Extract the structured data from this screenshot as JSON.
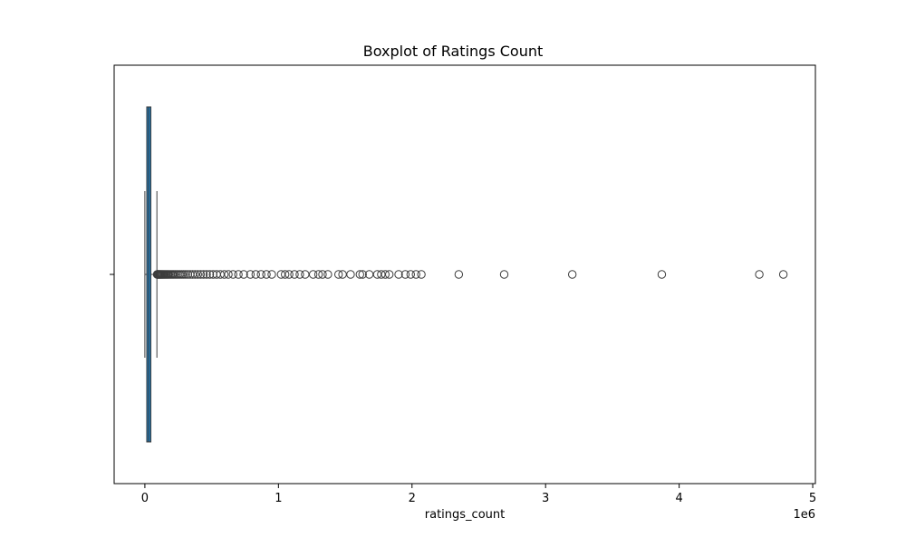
{
  "chart_data": {
    "type": "boxplot",
    "title": "Boxplot of Ratings Count",
    "xlabel": "ratings_count",
    "ylabel": "",
    "x_multiplier_label": "1e6",
    "xlim": [
      -230000,
      5020000
    ],
    "x_ticks": [
      {
        "value": 0,
        "label": "0"
      },
      {
        "value": 1000000,
        "label": "1"
      },
      {
        "value": 2000000,
        "label": "2"
      },
      {
        "value": 3000000,
        "label": "3"
      },
      {
        "value": 4000000,
        "label": "4"
      },
      {
        "value": 5000000,
        "label": "5"
      }
    ],
    "grid": false,
    "box": {
      "whisker_low": 0,
      "q1": 14000,
      "median": 28000,
      "q3": 45000,
      "whisker_high": 90000,
      "color": "#1f77b4"
    },
    "outliers": [
      92000,
      96000,
      100000,
      105000,
      110000,
      115000,
      120000,
      126000,
      132000,
      138000,
      145000,
      152000,
      160000,
      168000,
      176000,
      185000,
      195000,
      205000,
      215000,
      226000,
      238000,
      250000,
      263000,
      277000,
      291000,
      306000,
      322000,
      339000,
      357000,
      376000,
      396000,
      417000,
      439000,
      462000,
      486000,
      511000,
      537000,
      565000,
      595000,
      625000,
      660000,
      700000,
      740000,
      790000,
      830000,
      870000,
      910000,
      950000,
      1020000,
      1050000,
      1080000,
      1120000,
      1160000,
      1200000,
      1260000,
      1300000,
      1330000,
      1370000,
      1450000,
      1480000,
      1540000,
      1610000,
      1630000,
      1680000,
      1740000,
      1770000,
      1800000,
      1830000,
      1900000,
      1950000,
      1990000,
      2030000,
      2070000,
      2350000,
      2690000,
      3200000,
      3870000,
      4600000,
      4780000
    ]
  }
}
